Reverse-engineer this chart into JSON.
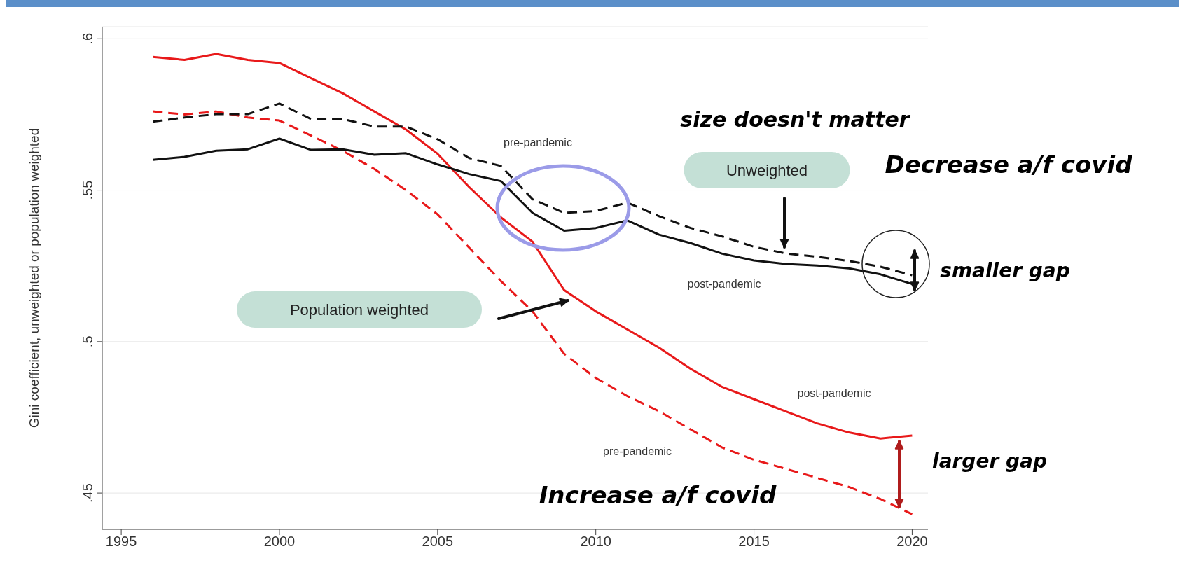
{
  "chart_data": {
    "type": "line",
    "ylabel": "Gini coefficient, unweighted or population weighted",
    "x": [
      1996,
      1997,
      1998,
      1999,
      2000,
      2001,
      2002,
      2003,
      2004,
      2005,
      2006,
      2007,
      2008,
      2009,
      2010,
      2011,
      2012,
      2013,
      2014,
      2015,
      2016,
      2017,
      2018,
      2019,
      2020
    ],
    "series": [
      {
        "color": "#e8191a",
        "line_style": "solid",
        "values": [
          0.594,
          0.593,
          0.595,
          0.593,
          0.592,
          0.587,
          0.582,
          0.576,
          0.57,
          0.562,
          0.551,
          0.541,
          0.533,
          0.517,
          0.51,
          0.504,
          0.498,
          0.491,
          0.485,
          0.481,
          0.477,
          0.473,
          0.47,
          0.468,
          0.469
        ]
      },
      {
        "color": "#e8191a",
        "line_style": "dashed",
        "values": [
          0.576,
          0.575,
          0.576,
          0.574,
          0.573,
          0.568,
          0.563,
          0.557,
          0.55,
          0.542,
          0.531,
          0.52,
          0.51,
          0.496,
          0.488,
          0.482,
          0.477,
          0.471,
          0.465,
          0.461,
          0.458,
          0.455,
          0.452,
          0.448,
          0.443
        ]
      },
      {
        "color": "#111111",
        "line_style": "solid",
        "values": [
          0.56,
          0.561,
          0.563,
          0.5635,
          0.567,
          0.5633,
          0.5635,
          0.5617,
          0.5622,
          0.5585,
          0.5553,
          0.553,
          0.5425,
          0.5366,
          0.5375,
          0.54,
          0.5353,
          0.5325,
          0.529,
          0.5268,
          0.5256,
          0.5251,
          0.5242,
          0.5222,
          0.519
        ]
      },
      {
        "color": "#111111",
        "line_style": "dashed",
        "values": [
          0.5726,
          0.574,
          0.5751,
          0.5751,
          0.5786,
          0.5735,
          0.5735,
          0.571,
          0.571,
          0.5668,
          0.5606,
          0.558,
          0.547,
          0.5425,
          0.5431,
          0.5459,
          0.5414,
          0.5375,
          0.5347,
          0.5313,
          0.5291,
          0.528,
          0.5266,
          0.5247,
          0.5219
        ]
      }
    ],
    "xlim": [
      1994.4,
      2020.5
    ],
    "xticks": [
      1995,
      2000,
      2005,
      2010,
      2015,
      2020
    ],
    "ylim": [
      0.438,
      0.604
    ],
    "yticks": [
      {
        "value": 0.45,
        "label": ".45"
      },
      {
        "value": 0.5,
        "label": ".5"
      },
      {
        "value": 0.55,
        "label": ".55"
      },
      {
        "value": 0.6,
        "label": ".6"
      }
    ],
    "grid": "y",
    "marker": "none",
    "annotations": [
      "size doesn't matter",
      "Decrease a/f covid",
      "Unweighted",
      "pre-pandemic",
      "post-pandemic",
      "Population weighted",
      "smaller gap",
      "post-pandemic",
      "pre-pandemic",
      "larger gap",
      "Increase a/f covid"
    ]
  }
}
